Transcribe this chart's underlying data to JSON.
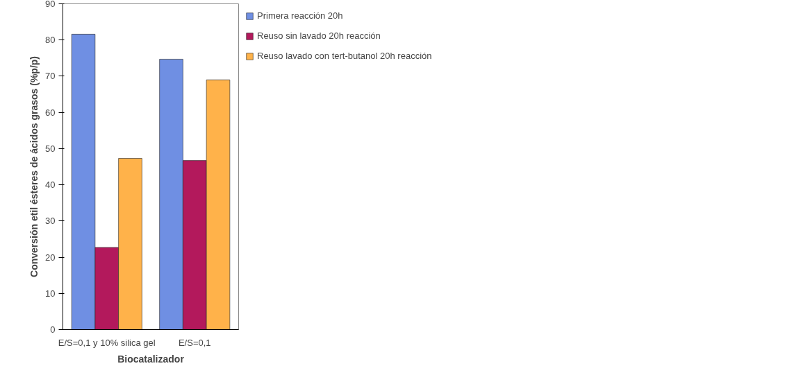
{
  "chart_data": {
    "type": "bar",
    "xlabel": "Biocatalizador",
    "ylabel": "Conversión etil ésteres de ácidos grasos (%p/p)",
    "categories": [
      "E/S=0,1 y 10% silica gel",
      "E/S=0,1"
    ],
    "series": [
      {
        "name": "Primera reacción 20h",
        "color": "#6f8fe3",
        "values": [
          81.6,
          74.7
        ]
      },
      {
        "name": "Reuso sin lavado 20h reacción",
        "color": "#b3195c",
        "values": [
          22.7,
          46.7
        ]
      },
      {
        "name": "Reuso lavado con tert-butanol 20h reacción",
        "color": "#ffb24a",
        "values": [
          47.3,
          69.0
        ]
      }
    ],
    "ylim": [
      0,
      90
    ],
    "yticks": [
      0,
      10,
      20,
      30,
      40,
      50,
      60,
      70,
      80,
      90
    ],
    "grid": false,
    "legend": "right"
  }
}
